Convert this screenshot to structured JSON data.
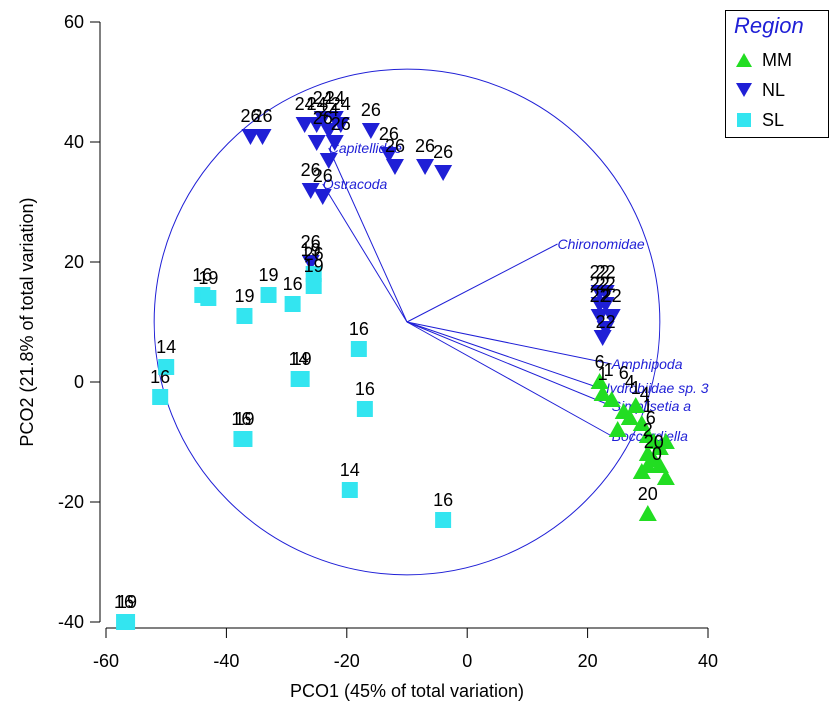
{
  "chart_data": {
    "type": "scatter",
    "title": "",
    "xlabel": "PCO1 (45% of total variation)",
    "ylabel": "PCO2 (21.8% of total variation)",
    "xlim": [
      -60,
      40
    ],
    "ylim": [
      -40,
      60
    ],
    "xticks": [
      -60,
      -40,
      -20,
      0,
      20,
      40
    ],
    "yticks": [
      -40,
      -20,
      0,
      20,
      40,
      60
    ],
    "grid": false,
    "legend": {
      "title": "Region",
      "position": "top-right",
      "entries": [
        {
          "name": "MM",
          "marker": "triangle-up",
          "color": "#22dd22"
        },
        {
          "name": "NL",
          "marker": "triangle-down",
          "color": "#1f1fd6"
        },
        {
          "name": "SL",
          "marker": "square",
          "color": "#33e5f0"
        }
      ]
    },
    "series": [
      {
        "name": "MM",
        "color": "#22dd22",
        "marker": "triangle-up",
        "points": [
          {
            "x": 22,
            "y": 0,
            "label": "6"
          },
          {
            "x": 22.5,
            "y": -2,
            "label": "1"
          },
          {
            "x": 24,
            "y": -3
          },
          {
            "x": 26,
            "y": -5
          },
          {
            "x": 25,
            "y": -8
          },
          {
            "x": 27,
            "y": -6
          },
          {
            "x": 28,
            "y": -4
          },
          {
            "x": 29,
            "y": -7
          },
          {
            "x": 30,
            "y": -9
          },
          {
            "x": 31,
            "y": -10
          },
          {
            "x": 30,
            "y": -12
          },
          {
            "x": 32,
            "y": -11
          },
          {
            "x": 33,
            "y": -10
          },
          {
            "x": 30,
            "y": -14
          },
          {
            "x": 31,
            "y": -13
          },
          {
            "x": 29,
            "y": -15
          },
          {
            "x": 32,
            "y": -14
          },
          {
            "x": 33,
            "y": -16
          },
          {
            "x": 30,
            "y": -22,
            "label": "20"
          }
        ]
      },
      {
        "name": "NL",
        "color": "#1f1fd6",
        "marker": "triangle-down",
        "points": [
          {
            "x": -36,
            "y": 41,
            "label": "26"
          },
          {
            "x": -34,
            "y": 41,
            "label": "26"
          },
          {
            "x": -27,
            "y": 43,
            "label": "24"
          },
          {
            "x": -25,
            "y": 43,
            "label": "24"
          },
          {
            "x": -24,
            "y": 44,
            "label": "24"
          },
          {
            "x": -23,
            "y": 42,
            "label": "24"
          },
          {
            "x": -22,
            "y": 44,
            "label": "24"
          },
          {
            "x": -21,
            "y": 43,
            "label": "24"
          },
          {
            "x": -25,
            "y": 40
          },
          {
            "x": -23,
            "y": 37
          },
          {
            "x": -22,
            "y": 40
          },
          {
            "x": -16,
            "y": 42,
            "label": "26"
          },
          {
            "x": -13,
            "y": 38,
            "label": "26"
          },
          {
            "x": -12,
            "y": 36,
            "label": "26"
          },
          {
            "x": -7,
            "y": 36,
            "label": "26"
          },
          {
            "x": -4,
            "y": 35,
            "label": "26"
          },
          {
            "x": -26,
            "y": 32,
            "label": "26"
          },
          {
            "x": -24,
            "y": 31,
            "label": "26"
          },
          {
            "x": -26,
            "y": 20,
            "label": "26"
          },
          {
            "x": 22,
            "y": 15,
            "label": "22"
          },
          {
            "x": 23,
            "y": 15,
            "label": "22"
          },
          {
            "x": 22,
            "y": 13,
            "label": "22"
          },
          {
            "x": 23,
            "y": 13,
            "label": "22"
          },
          {
            "x": 22,
            "y": 11,
            "label": "22"
          },
          {
            "x": 24,
            "y": 11,
            "label": "22"
          },
          {
            "x": 23,
            "y": 9
          },
          {
            "x": 22.5,
            "y": 7.5
          }
        ]
      },
      {
        "name": "SL",
        "color": "#33e5f0",
        "marker": "square",
        "points": [
          {
            "x": -44,
            "y": 14.5,
            "label": "16"
          },
          {
            "x": -43,
            "y": 14,
            "label": "19"
          },
          {
            "x": -37,
            "y": 11,
            "label": "19"
          },
          {
            "x": -33,
            "y": 14.5,
            "label": "19"
          },
          {
            "x": -29,
            "y": 13,
            "label": "16"
          },
          {
            "x": -25.5,
            "y": 18,
            "label": "26"
          },
          {
            "x": -25.5,
            "y": 16,
            "label": "19"
          },
          {
            "x": -50,
            "y": 2.5,
            "label": "14"
          },
          {
            "x": -51,
            "y": -2.5,
            "label": "16"
          },
          {
            "x": -28,
            "y": 0.5,
            "label": "14"
          },
          {
            "x": -27.5,
            "y": 0.5,
            "label": "19"
          },
          {
            "x": -18,
            "y": 5.5,
            "label": "16"
          },
          {
            "x": -17,
            "y": -4.5,
            "label": "16"
          },
          {
            "x": -37.5,
            "y": -9.5,
            "label": "16"
          },
          {
            "x": -37,
            "y": -9.5,
            "label": "19"
          },
          {
            "x": -19.5,
            "y": -18,
            "label": "14"
          },
          {
            "x": -4,
            "y": -23,
            "label": "16"
          },
          {
            "x": -57,
            "y": -40,
            "label": "16"
          },
          {
            "x": -56.5,
            "y": -40,
            "label": "19"
          }
        ]
      }
    ],
    "vectors": {
      "origin": [
        -10,
        10
      ],
      "circle_radius": 42,
      "color": "#1f1fd6",
      "items": [
        {
          "name": "Capitellidae",
          "x": -23,
          "y": 39
        },
        {
          "name": "Ostracoda",
          "x": -24,
          "y": 33
        },
        {
          "name": "Chironomidae",
          "x": 15,
          "y": 23
        },
        {
          "name": "Amphipoda",
          "x": 24,
          "y": 3
        },
        {
          "name": "Hydrobiidae sp. 3",
          "x": 22,
          "y": -1
        },
        {
          "name": "Simplisetia a",
          "x": 24,
          "y": -4
        },
        {
          "name": "Boccardiella",
          "x": 24,
          "y": -9
        }
      ]
    },
    "extra_labels": [
      {
        "text": "1",
        "x": 23.5,
        "y": 1
      },
      {
        "text": "6",
        "x": 26,
        "y": 0.5
      },
      {
        "text": "4",
        "x": 27,
        "y": -1
      },
      {
        "text": "1",
        "x": 28,
        "y": -2
      },
      {
        "text": "4",
        "x": 29.5,
        "y": -3
      },
      {
        "text": "1",
        "x": 30,
        "y": -5
      },
      {
        "text": "6",
        "x": 30.5,
        "y": -7
      },
      {
        "text": "2",
        "x": 30,
        "y": -9
      },
      {
        "text": "20",
        "x": 31,
        "y": -11
      },
      {
        "text": "0",
        "x": 31.5,
        "y": -13
      },
      {
        "text": "22",
        "x": 23,
        "y": 9
      },
      {
        "text": "19",
        "x": -26,
        "y": 21
      },
      {
        "text": "26",
        "x": -24,
        "y": 43
      },
      {
        "text": "26",
        "x": -21,
        "y": 42
      }
    ]
  }
}
